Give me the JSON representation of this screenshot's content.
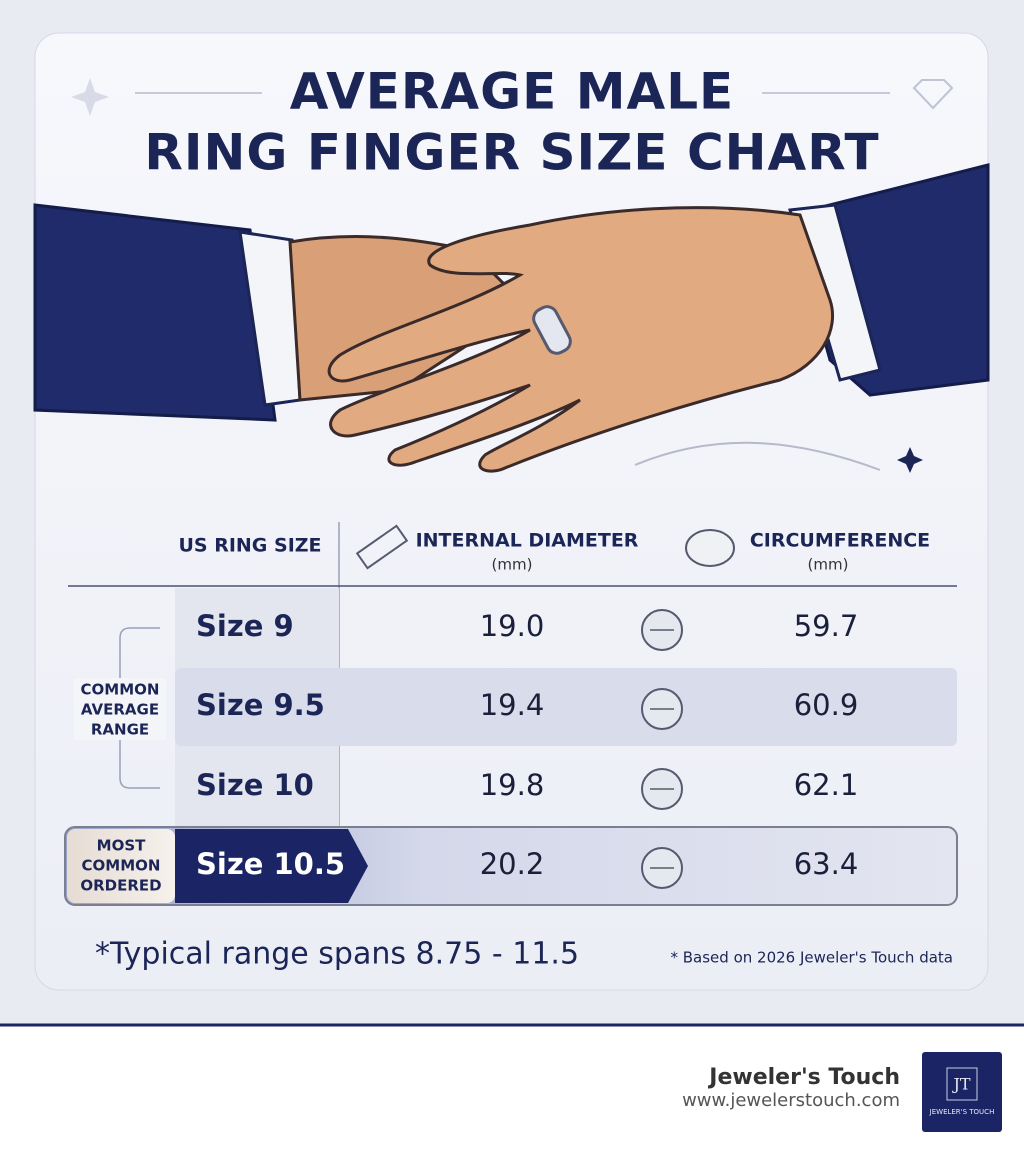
{
  "header": {
    "title_lines": [
      "AVERAGE MALE",
      "RING FINGER SIZE CHART"
    ]
  },
  "table": {
    "headers": {
      "size": "US RING SIZE",
      "diameter": "INTERNAL DIAMETER",
      "diameter_unit": "(mm)",
      "circumference": "CIRCUMFERENCE",
      "circumference_unit": "(mm)"
    },
    "rows": [
      [
        "Size 9",
        "19.0",
        "59.7"
      ],
      [
        "Size 9.5",
        "19.4",
        "60.9"
      ],
      [
        "Size 10",
        "19.8",
        "62.1"
      ],
      [
        "Size 10.5",
        "20.2",
        "63.4"
      ]
    ],
    "range_label_lines": [
      "COMMON",
      "AVERAGE",
      "RANGE"
    ],
    "popular_label_lines": [
      "MOST",
      "COMMON",
      "ORDERED"
    ]
  },
  "footnotes": {
    "range": "*Typical range spans 8.75 - 11.5",
    "source": "* Based on 2026 Jeweler's Touch data"
  },
  "footer": {
    "brand": "Jeweler's Touch",
    "url": "www.jewelerstouch.com",
    "logo_mark": "JT",
    "logo_text": "JEWELER'S TOUCH"
  }
}
